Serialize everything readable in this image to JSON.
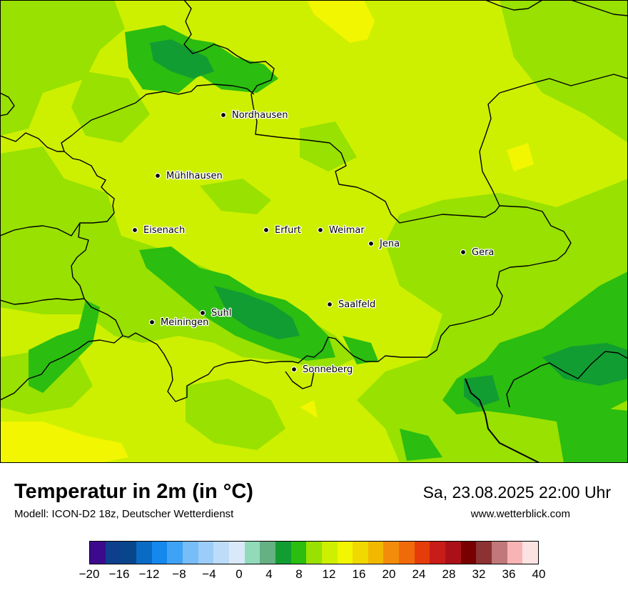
{
  "map": {
    "cities": [
      {
        "name": "Nordhausen"
      },
      {
        "name": "Mühlhausen"
      },
      {
        "name": "Eisenach"
      },
      {
        "name": "Erfurt"
      },
      {
        "name": "Weimar"
      },
      {
        "name": "Jena"
      },
      {
        "name": "Gera"
      },
      {
        "name": "Saalfeld"
      },
      {
        "name": "Suhl"
      },
      {
        "name": "Meiningen"
      },
      {
        "name": "Sonneberg"
      }
    ]
  },
  "header": {
    "title": "Temperatur in 2m (in °C)",
    "subtitle": "Modell: ICON-D2 18z, Deutscher Wetterdienst",
    "datetime": "Sa, 23.08.2025 22:00 Uhr",
    "website": "www.wetterblick.com"
  },
  "legend": {
    "min": -20,
    "max": 40,
    "ticks": [
      "−20",
      "−16",
      "−12",
      "−8",
      "−4",
      "0",
      "4",
      "8",
      "12",
      "16",
      "20",
      "24",
      "28",
      "32",
      "36",
      "40"
    ],
    "colors": [
      "#3c0a8c",
      "#0d3f8c",
      "#08468c",
      "#0a6bc4",
      "#1488ec",
      "#3fa3f5",
      "#77bdf7",
      "#9ccdf8",
      "#bcdcf9",
      "#d9e9fa",
      "#91dbbb",
      "#65b184",
      "#129d32",
      "#2bbd10",
      "#98e100",
      "#cdf000",
      "#f2f600",
      "#f0d800",
      "#f2b800",
      "#f28c0a",
      "#f06a0a",
      "#e63c0a",
      "#c81c18",
      "#aa1018",
      "#780000",
      "#8c3232",
      "#c07878",
      "#f8b4b4",
      "#fde2e2"
    ]
  }
}
